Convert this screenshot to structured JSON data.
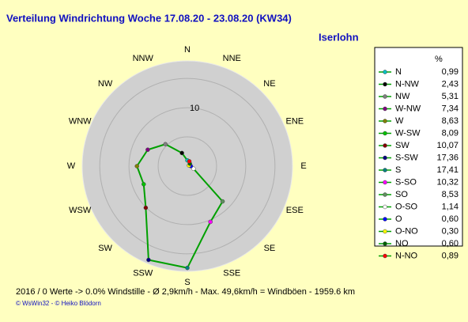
{
  "chart_data": {
    "type": "radar",
    "title": "Verteilung Windrichtung   Woche 17.08.20 - 23.08.20 (KW34)",
    "subtitle": "Iserlohn",
    "legend_header": "%",
    "categories": [
      "N",
      "N-NW",
      "NW",
      "W-NW",
      "W",
      "W-SW",
      "SW",
      "S-SW",
      "S",
      "S-SO",
      "SO",
      "O-SO",
      "O",
      "O-NO",
      "NO",
      "N-NO"
    ],
    "values": [
      0.99,
      2.43,
      5.31,
      7.34,
      8.63,
      8.09,
      10.07,
      17.36,
      17.41,
      10.32,
      8.53,
      1.14,
      0.6,
      0.3,
      0.6,
      0.89
    ],
    "value_labels": [
      "0,99",
      "2,43",
      "5,31",
      "7,34",
      "8,63",
      "8,09",
      "10,07",
      "17,36",
      "17,41",
      "10,32",
      "8,53",
      "1,14",
      "0,60",
      "0,30",
      "0,60",
      "0,89"
    ],
    "point_colors": [
      "#00c0c0",
      "#000000",
      "#808080",
      "#800080",
      "#808000",
      "#00c000",
      "#800000",
      "#000080",
      "#008080",
      "#ff00ff",
      "#609060",
      "#ffffff",
      "#0000ff",
      "#ffff00",
      "#006000",
      "#ff0000"
    ],
    "color": "#00a000",
    "direction_labels": [
      "N",
      "NNE",
      "NE",
      "ENE",
      "E",
      "ESE",
      "SE",
      "SSE",
      "S",
      "SSW",
      "SW",
      "WSW",
      "W",
      "WNW",
      "NW",
      "NNW"
    ],
    "rlim": [
      0,
      18
    ],
    "rticks": [
      10
    ],
    "rgrid": [
      5,
      10,
      15
    ],
    "footer": "2016 / 0 Werte  -> 0.0% Windstille   -   Ø 2,9km/h  -  Max. 49,6km/h = Windböen   -   1959.6 km",
    "credit": "© WsWin32  - © Heiko Blödorn"
  }
}
